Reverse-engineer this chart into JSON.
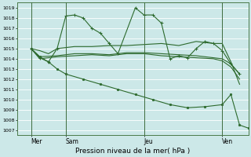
{
  "xlabel": "Pression niveau de la mer( hPa )",
  "bg_color": "#cce8e8",
  "grid_color": "#ffffff",
  "line_color": "#2d6a2d",
  "ylim": [
    1006.5,
    1019.5
  ],
  "yticks": [
    1007,
    1008,
    1009,
    1010,
    1011,
    1012,
    1013,
    1014,
    1015,
    1016,
    1017,
    1018,
    1019
  ],
  "xlim": [
    -0.3,
    13.0
  ],
  "day_positions": [
    0.5,
    2.5,
    7.0,
    11.5
  ],
  "day_vlines": [
    0.5,
    2.5,
    7.0,
    11.5
  ],
  "day_labels": [
    "Mer",
    "Sam",
    "Jeu",
    "Ven"
  ],
  "s1_x": [
    0.5,
    1.0,
    1.5,
    2.0,
    2.5,
    3.0,
    3.5,
    4.0,
    4.5,
    5.0,
    5.5,
    6.5,
    7.0,
    7.5,
    8.0,
    8.5,
    9.0,
    9.5,
    10.0,
    10.5,
    11.0,
    11.5,
    12.0,
    12.5
  ],
  "s1_y": [
    1015.0,
    1014.1,
    1013.7,
    1015.0,
    1018.2,
    1018.3,
    1018.0,
    1017.0,
    1016.5,
    1015.5,
    1014.5,
    1019.0,
    1018.3,
    1018.3,
    1017.5,
    1014.0,
    1014.3,
    1014.1,
    1015.0,
    1015.7,
    1015.5,
    1014.8,
    1013.5,
    1012.5
  ],
  "s2_x": [
    0.5,
    1.0,
    1.5,
    2.0,
    2.5,
    3.0,
    4.0,
    5.0,
    6.0,
    7.0,
    8.0,
    9.0,
    10.0,
    11.0,
    11.5,
    12.0,
    12.5
  ],
  "s2_y": [
    1015.0,
    1014.8,
    1014.5,
    1015.0,
    1015.1,
    1015.2,
    1015.2,
    1015.3,
    1015.3,
    1015.4,
    1015.5,
    1015.3,
    1015.7,
    1015.5,
    1015.5,
    1013.7,
    1011.5
  ],
  "s3_x": [
    0.5,
    1.0,
    2.0,
    3.0,
    4.0,
    5.0,
    6.0,
    7.0,
    8.0,
    9.0,
    10.0,
    11.0,
    11.5,
    12.0,
    12.5
  ],
  "s3_y": [
    1015.0,
    1014.0,
    1014.2,
    1014.3,
    1014.4,
    1014.3,
    1014.5,
    1014.5,
    1014.3,
    1014.2,
    1014.1,
    1014.0,
    1013.8,
    1013.2,
    1012.0
  ],
  "s4_x": [
    0.5,
    1.0,
    2.0,
    3.0,
    4.0,
    5.0,
    6.0,
    7.0,
    8.0,
    9.0,
    10.0,
    11.0,
    11.5,
    12.0,
    12.5
  ],
  "s4_y": [
    1015.0,
    1014.2,
    1014.3,
    1014.5,
    1014.5,
    1014.4,
    1014.6,
    1014.6,
    1014.5,
    1014.4,
    1014.3,
    1014.1,
    1014.0,
    1013.5,
    1012.5
  ],
  "s5_x": [
    0.5,
    1.0,
    1.5,
    2.0,
    2.5,
    3.5,
    4.5,
    5.5,
    6.5,
    7.5,
    8.5,
    9.5,
    10.5,
    11.5,
    12.0,
    12.5,
    13.0
  ],
  "s5_y": [
    1015.0,
    1014.2,
    1013.7,
    1013.0,
    1012.5,
    1012.0,
    1011.5,
    1011.0,
    1010.5,
    1010.0,
    1009.5,
    1009.2,
    1009.3,
    1009.5,
    1010.5,
    1007.5,
    1007.2
  ]
}
